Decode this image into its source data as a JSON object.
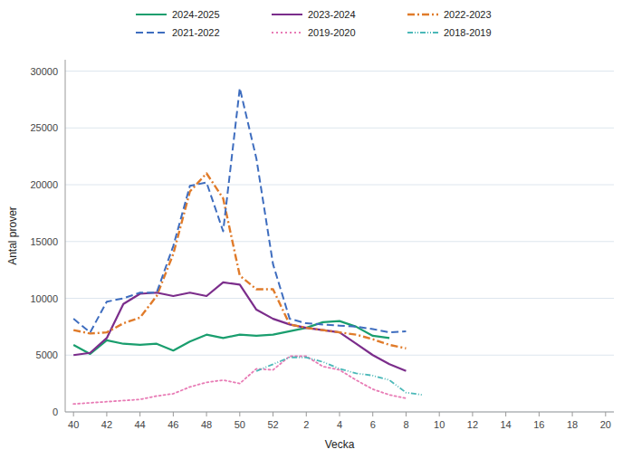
{
  "chart_data": {
    "type": "line",
    "xlabel": "Vecka",
    "ylabel": "Antal prover",
    "categories": [
      "40",
      null,
      "42",
      null,
      "44",
      null,
      "46",
      null,
      "48",
      null,
      "50",
      null,
      "52",
      null,
      "2",
      null,
      "4",
      null,
      "6",
      null,
      "8",
      null,
      "10",
      null,
      "12",
      null,
      "14",
      null,
      "16",
      null,
      "18",
      null,
      "20"
    ],
    "ylim": [
      0,
      31000
    ],
    "yticks": [
      0,
      5000,
      10000,
      15000,
      20000,
      25000,
      30000
    ],
    "grid": true,
    "legend": "top",
    "series": [
      {
        "name": "2024-2025",
        "color": "#1a9e6e",
        "line_style": "solid",
        "values": [
          5900,
          5100,
          6300,
          6000,
          5900,
          6000,
          5400,
          6200,
          6800,
          6500,
          6800,
          6700,
          6800,
          7100,
          7400,
          7900,
          8000,
          7500,
          6700,
          6500,
          null,
          null,
          null,
          null,
          null,
          null,
          null,
          null,
          null,
          null,
          null,
          null,
          null
        ]
      },
      {
        "name": "2023-2024",
        "color": "#7b2d8b",
        "line_style": "solid",
        "values": [
          5000,
          5200,
          6500,
          9500,
          10400,
          10500,
          10200,
          10500,
          10200,
          11400,
          11200,
          9000,
          8200,
          7700,
          7400,
          7200,
          7000,
          6000,
          5000,
          4200,
          3600,
          null,
          null,
          null,
          null,
          null,
          null,
          null,
          null,
          null,
          null,
          null,
          null
        ]
      },
      {
        "name": "2022-2023",
        "color": "#e07b2a",
        "line_style": "dashdot",
        "values": [
          7200,
          6900,
          7000,
          7800,
          8300,
          10200,
          13900,
          19400,
          21000,
          18800,
          12000,
          10800,
          10800,
          7700,
          7400,
          7200,
          7000,
          6800,
          6400,
          5900,
          5600,
          null,
          null,
          null,
          null,
          null,
          null,
          null,
          null,
          null,
          null,
          null,
          null
        ]
      },
      {
        "name": "2021-2022",
        "color": "#3e6dbf",
        "line_style": "dashed",
        "values": [
          8200,
          7000,
          9700,
          10000,
          10500,
          10500,
          14600,
          19900,
          20200,
          15900,
          28500,
          22300,
          13000,
          8200,
          7800,
          7700,
          7600,
          7500,
          7300,
          7000,
          7100,
          null,
          null,
          null,
          null,
          null,
          null,
          null,
          null,
          null,
          null,
          null,
          null
        ]
      },
      {
        "name": "2019-2020",
        "color": "#e87bb5",
        "line_style": "dotted",
        "values": [
          700,
          800,
          900,
          1000,
          1100,
          1400,
          1600,
          2200,
          2600,
          2800,
          2500,
          3800,
          3700,
          4900,
          4900,
          4000,
          3700,
          2800,
          2000,
          1500,
          1200,
          null,
          null,
          null,
          null,
          null,
          null,
          null,
          null,
          null,
          null,
          null,
          null
        ]
      },
      {
        "name": "2018-2019",
        "color": "#4bb8b8",
        "line_style": "dashdotdot",
        "values": [
          null,
          null,
          null,
          null,
          null,
          null,
          null,
          null,
          null,
          null,
          null,
          3600,
          4200,
          4800,
          4800,
          4400,
          3800,
          3400,
          3200,
          2800,
          1700,
          1500,
          null,
          null,
          null,
          null,
          null,
          null,
          null,
          null,
          null,
          null,
          null
        ]
      }
    ]
  }
}
